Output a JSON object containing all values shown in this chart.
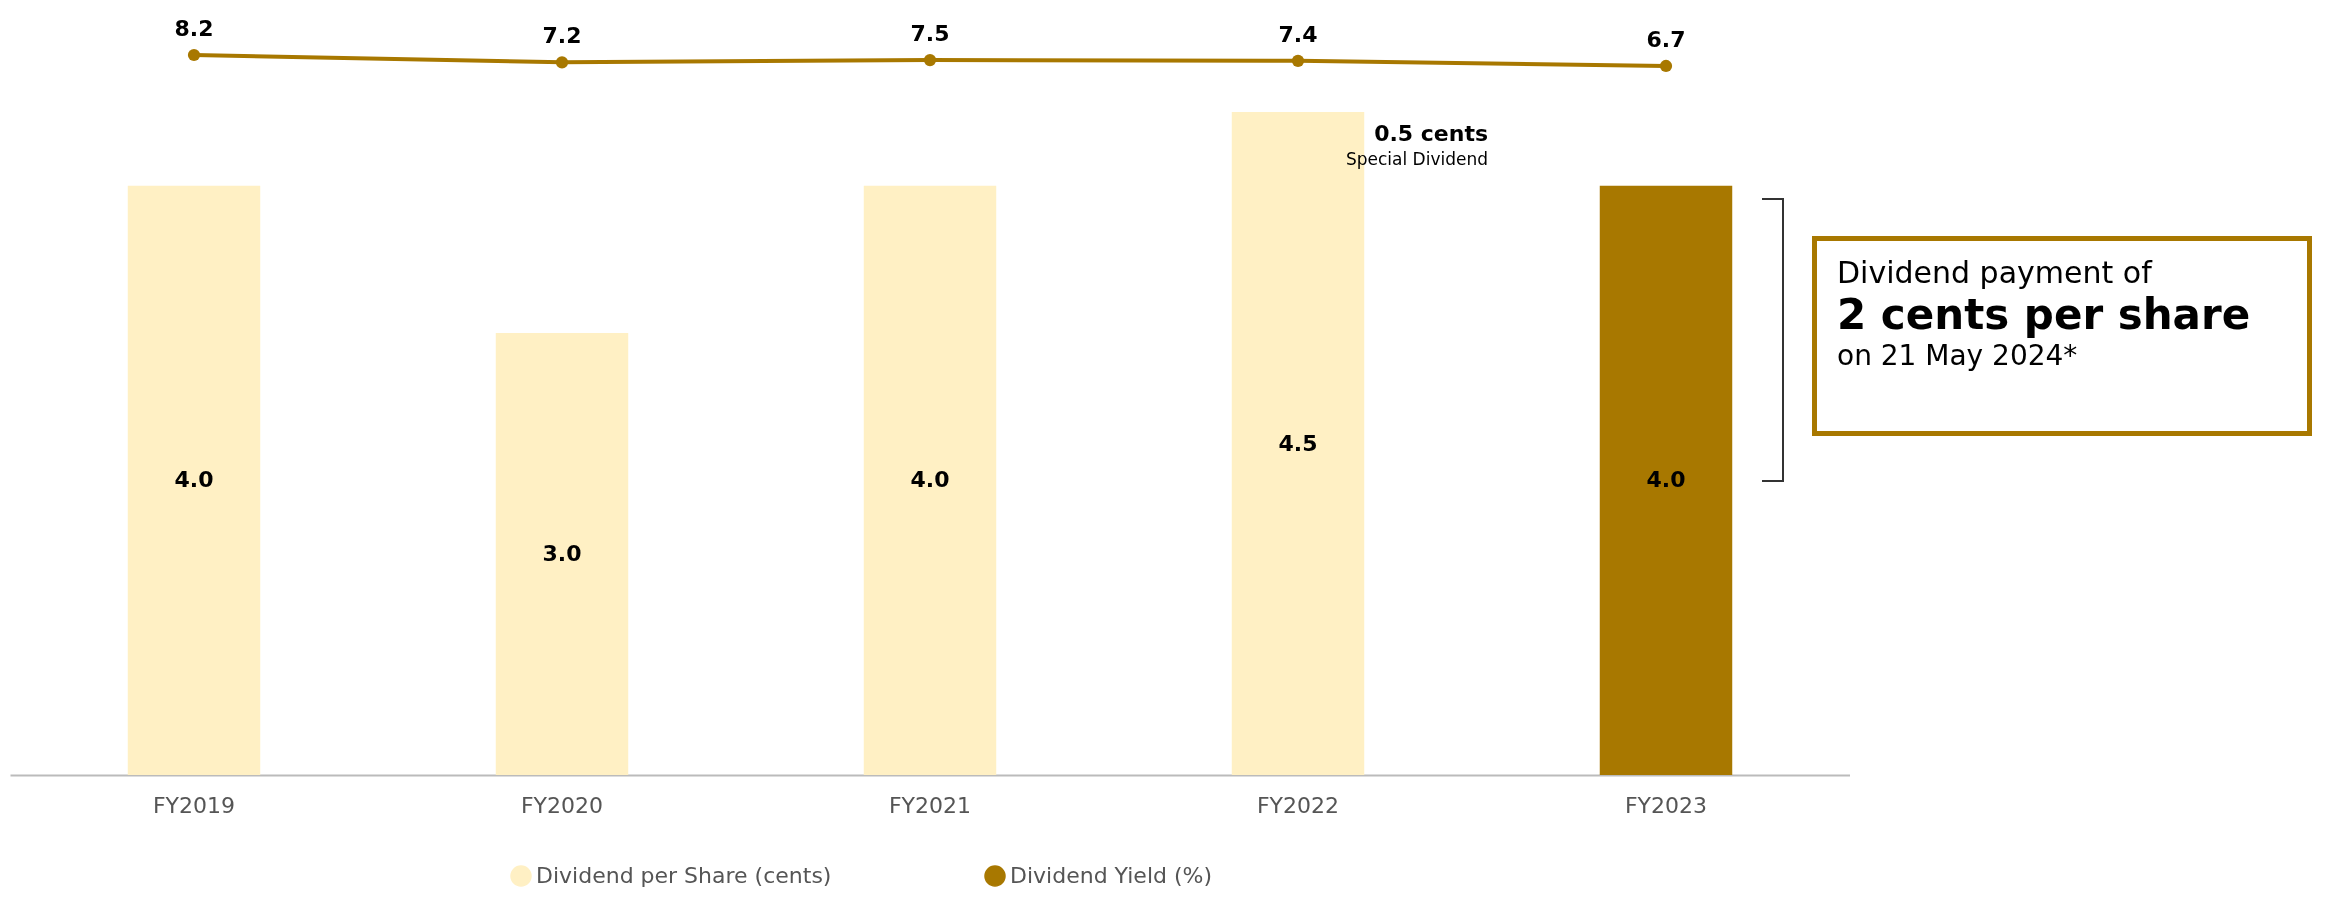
{
  "chart_data": [
    {
      "type": "line",
      "categories": [
        null,
        null,
        null,
        null,
        null
      ],
      "series": [
        {
          "name": "Dividend Yield (%)",
          "color": "#a87800",
          "values": [
            8.2,
            7.2,
            7.5,
            7.4,
            6.7
          ],
          "value_labels": [
            "8.2",
            "7.2",
            "7.5",
            "7.4",
            "6.7"
          ]
        }
      ],
      "marker": "circle",
      "legend": "bottom"
    },
    {
      "type": "bar",
      "categories": [
        "FY2019",
        "FY2020",
        "FY2021",
        "FY2022",
        "FY2023"
      ],
      "series": [
        {
          "name": "Dividend per Share (cents)",
          "color": "#fff0c4",
          "colors": [
            "#fff0c4",
            "#fff0c4",
            "#fff0c4",
            "#fff0c4",
            "#a87800"
          ],
          "values": [
            4.0,
            3.0,
            4.0,
            4.5,
            4.0
          ],
          "value_labels": [
            "4.0",
            "3.0",
            "4.0",
            "4.5",
            "4.0"
          ]
        }
      ],
      "legend": "bottom",
      "annotations": [
        "0.5 cents",
        "Special Dividend",
        "Dividend payment of",
        "2 cents per share",
        "on 21 May 2024*"
      ]
    }
  ]
}
